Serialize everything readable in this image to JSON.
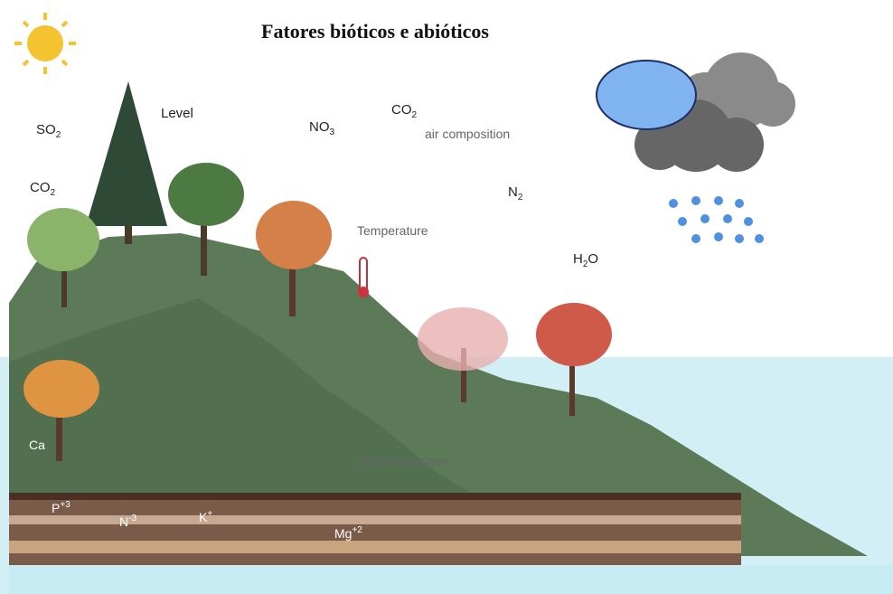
{
  "title": "Fatores bióticos e abióticos",
  "labels": [
    {
      "main": "SO",
      "sub": "2"
    },
    {
      "main": "Level"
    },
    {
      "main": "NO",
      "sub": "3"
    },
    {
      "main": "CO",
      "sub": "2"
    },
    {
      "main": "air composition"
    },
    {
      "main": "CO",
      "sub": "2"
    },
    {
      "main": "N",
      "sub": "2"
    },
    {
      "main": "Temperature"
    },
    {
      "main": "H",
      "sub": "2",
      "tail": "O"
    },
    {
      "main": "Ca"
    },
    {
      "main": "Soil composition"
    },
    {
      "main": "P",
      "sup": "+3"
    },
    {
      "main": "N",
      "sup": "-3"
    },
    {
      "main": "K",
      "sup": "+"
    },
    {
      "main": "Mg",
      "sup": "+2"
    }
  ]
}
